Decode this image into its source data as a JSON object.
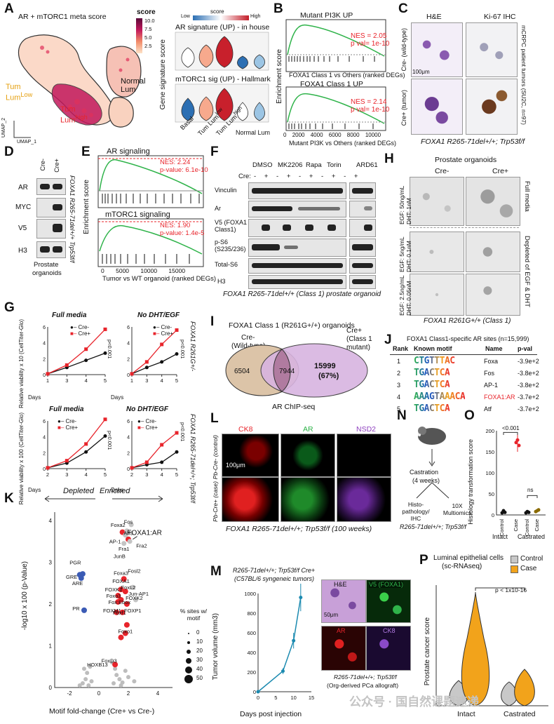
{
  "panels": {
    "A": "A",
    "B": "B",
    "C": "C",
    "D": "D",
    "E": "E",
    "F": "F",
    "G": "G",
    "H": "H",
    "I": "I",
    "J": "J",
    "K": "K",
    "L": "L",
    "M": "M",
    "N": "N",
    "O": "O",
    "P": "P"
  },
  "A": {
    "title": "AR + mTORC1 meta score",
    "score_label": "score",
    "ticks": [
      "10.0",
      "7.5",
      "5.0",
      "2.5"
    ],
    "groups": {
      "tum_low": "Tum",
      "tum_low2": "Lum",
      "tum_low_sup": "Low",
      "normal": "Normal",
      "normal2": "Lum",
      "tum_high": "Tum",
      "tum_high2": "Lum",
      "tum_high_sup": "high"
    },
    "umap2": "UMAP_2",
    "umap1": "UMAP_1",
    "violin_score": "score",
    "low": "Low",
    "high": "High",
    "v1_title": "AR signature (UP) - in house",
    "v2_title": "mTORC1 sig (UP) - Hallmark",
    "y_label": "Gene signature score",
    "x_labels": [
      "Basal",
      "Tum Lum",
      "Tum Lum",
      "Normal Lum"
    ],
    "x_sups": [
      "",
      "low",
      "high",
      ""
    ]
  },
  "B": {
    "t1": "Mutant PI3K UP",
    "nes1": "NES = 2.05",
    "p1": "p val= 1e-10",
    "x1": "FOXA1 Class 1 vs Others (ranked DEGs)",
    "t2": "FOXA1 Class 1 UP",
    "nes2": "NES = 2.14",
    "p2": "p val= 1e-10",
    "x2": "Mutant PI3K vs Others (ranked DEGs)",
    "y": "Enrichment score",
    "ticks": [
      "0",
      "2000",
      "4000",
      "6000",
      "8000",
      "10000"
    ]
  },
  "C": {
    "he": "H&E",
    "ki": "Ki-67 IHC",
    "row1": "Cre- (wild-type)",
    "row2": "Cre+ (tumor)",
    "side": "mCRPC patient tumors (SU2C, n=97)",
    "scale": "100μm",
    "caption": "FOXA1 R265-71del+/+; Trp53f/f"
  },
  "D": {
    "cols": [
      "Cre-",
      "Cre+"
    ],
    "rows": [
      "AR",
      "MYC",
      "V5",
      "H3"
    ],
    "side": "FOXA1 R265-71del+/+ Trp53f/f",
    "foot1": "Prostate",
    "foot2": "organoids"
  },
  "E": {
    "t1": "AR signaling",
    "nes1": "NES: 2.24",
    "p1": "p-value: 6.1e-10",
    "t2": "mTORC1 signaling",
    "nes2": "NES: 1.90",
    "p2": "p-value: 1.4e-5",
    "y": "Enrichment score",
    "x": "Tumor vs WT organoid (ranked DEGs)",
    "ticks": [
      "0",
      "5000",
      "10000",
      "15000"
    ]
  },
  "F": {
    "drugs": [
      "DMSO",
      "MK2206",
      "Rapa",
      "Torin",
      "ARD61"
    ],
    "cre_label": "Cre:",
    "signs": [
      "-",
      "+",
      "-",
      "+",
      "-",
      "+",
      "-",
      "+",
      "-",
      "+"
    ],
    "rows": [
      "Vinculin",
      "Ar",
      "V5 (FOXA1 Class1)",
      "p-S6 (S235/236)",
      "Total-S6",
      "H3"
    ],
    "caption": "FOXA1 R265-71del+/+ (Class 1) prostate organoid"
  },
  "G": {
    "t1": "Full media",
    "t2": "No DHT/EGF",
    "t3": "Full media",
    "t4": "No DHT/EGF",
    "y1": "Relative viability x 10 (CellTiter-Glo)",
    "y2": "Relative viability x 100 (CellTiter-Glo)",
    "legend": [
      "Cre-",
      "Cre+"
    ],
    "p": "p<0.001",
    "days": "Days",
    "side1": "FOXA1 R261G+/-",
    "side2": "FOXA1 R265-71del+/+; Trp53f/f",
    "x_top": [
      "1",
      "3",
      "4",
      "5"
    ],
    "x_bot": [
      "2",
      "3",
      "4",
      "5"
    ],
    "y_top": [
      "0",
      "2",
      "4",
      "6"
    ],
    "y_bot": [
      "0",
      "2",
      "4",
      "6"
    ]
  },
  "H": {
    "title": "Prostate organoids",
    "col1": "Cre-",
    "col2": "Cre+",
    "r1": "EGF: 50ng/mL DHT: 1nM",
    "r2": "EGF: 5ng/mL DHT: 0.1nM",
    "r3": "EGF: 2.5ng/mL DHT: 0.05nM",
    "side1": "Full media",
    "side2": "Depleted of EGF & DHT",
    "caption": "FOXA1 R261G+/+ (Class 1)"
  },
  "I": {
    "title": "FOXA1 Class 1 (R261G+/+) organoids",
    "left": "Cre-",
    "left2": "(Wild-type)",
    "right": "Cre+",
    "right2": "(Class 1",
    "right3": "mutant)",
    "n1": "6504",
    "n2": "7944",
    "n3": "15999",
    "n3b": "(67%)",
    "foot": "AR ChIP-seq"
  },
  "J": {
    "title": "FOXA1 Class1-specific AR sites (n=15,999)",
    "h_rank": "Rank",
    "h_motif": "Known motif",
    "h_name": "Name",
    "h_p": "p-val",
    "rows": [
      {
        "rank": "1",
        "name": "Foxa",
        "p": "-3.9e+2"
      },
      {
        "rank": "2",
        "name": "Fos",
        "p": "-3.8e+2"
      },
      {
        "rank": "3",
        "name": "AP-1",
        "p": "-3.8e+2"
      },
      {
        "rank": "4",
        "name": "FOXA1:AR",
        "p": "-3.7e+2"
      },
      {
        "rank": "5",
        "name": "Atf",
        "p": "-3.7e+2"
      }
    ]
  },
  "K": {
    "depleted": "Depleted",
    "enriched": "Enriched",
    "x": "Motif fold-change (Cre+ vs Cre-)",
    "y": "-log10 x 100 (p-Value)",
    "yticks": [
      "0",
      "1",
      "2",
      "3",
      "4"
    ],
    "xticks": [
      "-2",
      "0",
      "2",
      "4"
    ],
    "size_title": "% sites w/ motif",
    "sizes": [
      "0",
      "10",
      "20",
      "30",
      "40",
      "50"
    ],
    "labels": {
      "PGR": "PGR",
      "GRE": "GRE",
      "ARE": "ARE",
      "PR": "PR",
      "HOXB13": "HOXB13",
      "Foxa2": "Foxa2",
      "Fos": "Fos",
      "Atf3": "Atf3",
      "AP1": "AP-1",
      "Fra1": "Fra1",
      "JunB": "JunB",
      "Fra2": "Fra2",
      "FOXA1AR": "FOXA1:AR",
      "Fosl2": "Fosl2",
      "JunAP1": "Jun-AP1",
      "Foxa3": "Foxa3",
      "FOXA1": "FOXA1",
      "FOXK1": "FOXK1",
      "FoxL2": "FoxL2",
      "Foxo3": "Foxo3",
      "FoxEbox": "Fox:Ebox",
      "FOXK2": "FOXK2",
      "FOXM1": "FOXM1",
      "Foxf1": "Foxf1",
      "FOXP1": "FOXP1",
      "Foxo1": "Foxo1",
      "FoxD3": "FoxD3"
    }
  },
  "L": {
    "c1": "CK8",
    "c2": "AR",
    "c3": "NSD2",
    "r1": "Pb-Cre- (control)",
    "r2": "Pb-Cre+ (case)",
    "scale": "100μm",
    "caption": "FOXA1 R265-71del+/+; Trp53f/f (100 weeks)"
  },
  "M": {
    "title1": "R265-71del+/+; Trp53f/f Cre+",
    "title2": "(C57BL/6 syngeneic tumors)",
    "y": "Tumor volume (mm3)",
    "x": "Days post injection",
    "yticks": [
      "0",
      "200",
      "400",
      "600",
      "800",
      "1000"
    ],
    "xticks": [
      "0",
      "5",
      "10",
      "15"
    ],
    "he": "H&E",
    "v5": "V5 (FOXA1)",
    "ar": "AR",
    "ck8": "CK8",
    "scale": "50μm",
    "foot1": "R265-71del+/+; Trp53f/f",
    "foot2": "(Org-derived PCa allograft)"
  },
  "N": {
    "castration": "Castration",
    "weeks": "(4 weeks)",
    "histo": "Histo-pathology/ IHC",
    "multi": "10X Multiomics",
    "caption": "R265-71del+/+; Trp53f/f"
  },
  "O": {
    "y": "Histology transformation score",
    "p": "<0.001",
    "ns": "ns",
    "ctrl": "Control",
    "case": "Case",
    "g1": "Intact",
    "g2": "Castrated",
    "yticks": [
      "0",
      "50",
      "100",
      "150",
      "200"
    ]
  },
  "P": {
    "title1": "Luminal epithelial cells",
    "title2": "(sc-RNAseq)",
    "legend": [
      "Control",
      "Case"
    ],
    "p": "p < 1x10-16",
    "y": "Prostate cancer score",
    "g1": "Intact",
    "g2": "Castrated"
  },
  "watermark": "公众号 · 国自然课题速递",
  "colors": {
    "red": "#e8242b",
    "blue": "#3b5bb5",
    "teal": "#1b8ab0",
    "orange": "#f2a31b",
    "green": "#2fb34a"
  }
}
